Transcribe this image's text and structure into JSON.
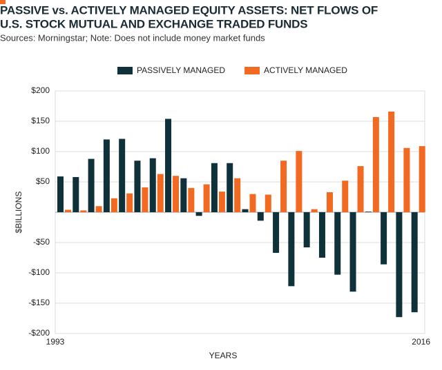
{
  "chart_data": {
    "type": "bar",
    "title": [
      "PASSIVE vs. ACTIVELY MANAGED EQUITY ASSETS: NET FLOWS OF",
      "U.S. STOCK MUTUAL AND EXCHANGE TRADED FUNDS"
    ],
    "subtitle": "Sources: Morningstar; Note: Does not include money market funds",
    "x_label": "YEARS",
    "y_label": "$BILLIONS",
    "categories": [
      "1993",
      null,
      null,
      null,
      null,
      null,
      null,
      null,
      null,
      null,
      null,
      null,
      null,
      null,
      null,
      null,
      null,
      null,
      null,
      null,
      null,
      null,
      null,
      "2016"
    ],
    "series": [
      {
        "name": "PASSIVELY MANAGED",
        "color": "#0f3139",
        "values": [
          59,
          58,
          88,
          120,
          121,
          85,
          89,
          154,
          56,
          -6,
          81,
          81,
          5,
          -14,
          -67,
          -122,
          -58,
          -75,
          -103,
          -131,
          1,
          -86,
          -173,
          -165
        ]
      },
      {
        "name": "ACTIVELY MANAGED",
        "color": "#f26a21",
        "values": [
          4,
          3,
          10,
          23,
          31,
          41,
          63,
          60,
          40,
          46,
          34,
          56,
          30,
          29,
          85,
          101,
          5,
          33,
          52,
          76,
          157,
          166,
          106,
          109
        ]
      }
    ],
    "ylim": [
      -200,
      200
    ],
    "yticks": [
      {
        "value": -200,
        "label": "-$200"
      },
      {
        "value": -150,
        "label": "-$150"
      },
      {
        "value": -100,
        "label": "-$100"
      },
      {
        "value": -50,
        "label": "-$50"
      },
      {
        "value": 50,
        "label": "$50"
      },
      {
        "value": 100,
        "label": "$100"
      },
      {
        "value": 150,
        "label": "$150"
      },
      {
        "value": 200,
        "label": "$200"
      }
    ],
    "grid": true,
    "legend": "top"
  }
}
